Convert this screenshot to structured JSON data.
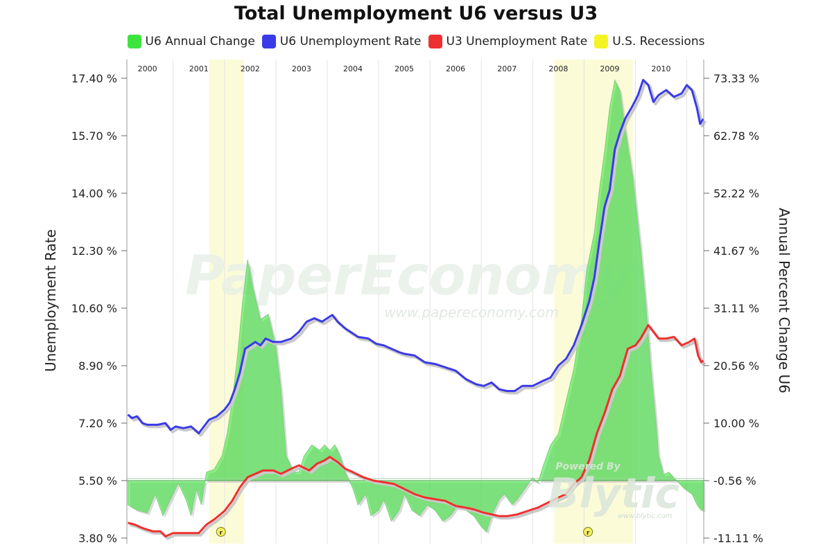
{
  "chart_data": {
    "type": "line",
    "title": "Total Unemployment U6 versus U3",
    "ylabel_left": "Unemployment Rate",
    "ylabel_right": "Annual Percent Change U6",
    "left_axis": {
      "min": 3.8,
      "max": 17.4,
      "ticks": [
        "17.40 %",
        "15.70 %",
        "14.00 %",
        "12.30 %",
        "10.60 %",
        "8.90 %",
        "7.20 %",
        "5.50 %",
        "3.80 %"
      ]
    },
    "right_axis": {
      "min": -11.11,
      "max": 73.33,
      "ticks": [
        "73.33 %",
        "62.78 %",
        "52.22 %",
        "41.67 %",
        "31.11 %",
        "20.56 %",
        "10.00 %",
        "-0.56 %",
        "-11.11 %"
      ]
    },
    "x_range": [
      1999.6,
      2010.83
    ],
    "year_labels": [
      "2000",
      "2001",
      "2002",
      "2003",
      "2004",
      "2005",
      "2006",
      "2007",
      "2008",
      "2009",
      "2010"
    ],
    "recessions": [
      {
        "start": 2001.2,
        "end": 2001.88,
        "marker": "r"
      },
      {
        "start": 2007.92,
        "end": 2009.45,
        "marker": "r"
      }
    ],
    "legend": [
      {
        "label": "U6 Annual Change",
        "color": "#3ee43e"
      },
      {
        "label": "U6 Unemployment Rate",
        "color": "#3a3ae8"
      },
      {
        "label": "U3 Unemployment Rate",
        "color": "#ee3030"
      },
      {
        "label": "U.S. Recessions",
        "color": "#f4f425"
      }
    ],
    "grid": "vertical-year-lines",
    "series": [
      {
        "name": "U6 Unemployment Rate",
        "axis": "left",
        "color": "#3a3ae8",
        "points": [
          [
            1999.62,
            7.45
          ],
          [
            1999.7,
            7.35
          ],
          [
            1999.8,
            7.4
          ],
          [
            1999.9,
            7.2
          ],
          [
            2000.0,
            7.15
          ],
          [
            2000.2,
            7.15
          ],
          [
            2000.35,
            7.2
          ],
          [
            2000.45,
            7.0
          ],
          [
            2000.55,
            7.1
          ],
          [
            2000.7,
            7.05
          ],
          [
            2000.85,
            7.1
          ],
          [
            2001.0,
            6.9
          ],
          [
            2001.1,
            7.1
          ],
          [
            2001.2,
            7.3
          ],
          [
            2001.35,
            7.4
          ],
          [
            2001.5,
            7.6
          ],
          [
            2001.6,
            7.8
          ],
          [
            2001.7,
            8.2
          ],
          [
            2001.8,
            8.7
          ],
          [
            2001.9,
            9.4
          ],
          [
            2002.0,
            9.5
          ],
          [
            2002.1,
            9.6
          ],
          [
            2002.2,
            9.5
          ],
          [
            2002.3,
            9.7
          ],
          [
            2002.45,
            9.6
          ],
          [
            2002.6,
            9.6
          ],
          [
            2002.8,
            9.7
          ],
          [
            2002.95,
            9.9
          ],
          [
            2003.1,
            10.2
          ],
          [
            2003.25,
            10.3
          ],
          [
            2003.4,
            10.2
          ],
          [
            2003.5,
            10.3
          ],
          [
            2003.6,
            10.4
          ],
          [
            2003.7,
            10.2
          ],
          [
            2003.85,
            10.0
          ],
          [
            2004.0,
            9.85
          ],
          [
            2004.1,
            9.75
          ],
          [
            2004.3,
            9.7
          ],
          [
            2004.45,
            9.55
          ],
          [
            2004.6,
            9.5
          ],
          [
            2004.75,
            9.4
          ],
          [
            2004.9,
            9.3
          ],
          [
            2005.0,
            9.25
          ],
          [
            2005.2,
            9.2
          ],
          [
            2005.4,
            9.0
          ],
          [
            2005.6,
            8.95
          ],
          [
            2005.8,
            8.85
          ],
          [
            2006.0,
            8.75
          ],
          [
            2006.2,
            8.5
          ],
          [
            2006.4,
            8.35
          ],
          [
            2006.55,
            8.3
          ],
          [
            2006.7,
            8.4
          ],
          [
            2006.85,
            8.2
          ],
          [
            2007.0,
            8.15
          ],
          [
            2007.15,
            8.15
          ],
          [
            2007.3,
            8.3
          ],
          [
            2007.5,
            8.3
          ],
          [
            2007.7,
            8.45
          ],
          [
            2007.85,
            8.55
          ],
          [
            2008.0,
            8.9
          ],
          [
            2008.15,
            9.1
          ],
          [
            2008.3,
            9.5
          ],
          [
            2008.45,
            10.1
          ],
          [
            2008.6,
            10.8
          ],
          [
            2008.7,
            11.5
          ],
          [
            2008.8,
            12.6
          ],
          [
            2008.9,
            13.6
          ],
          [
            2009.0,
            14.1
          ],
          [
            2009.1,
            15.3
          ],
          [
            2009.2,
            15.8
          ],
          [
            2009.3,
            16.2
          ],
          [
            2009.45,
            16.6
          ],
          [
            2009.55,
            16.9
          ],
          [
            2009.65,
            17.35
          ],
          [
            2009.75,
            17.2
          ],
          [
            2009.85,
            16.7
          ],
          [
            2009.95,
            16.9
          ],
          [
            2010.1,
            17.05
          ],
          [
            2010.25,
            16.85
          ],
          [
            2010.4,
            16.95
          ],
          [
            2010.5,
            17.2
          ],
          [
            2010.6,
            17.05
          ],
          [
            2010.7,
            16.5
          ],
          [
            2010.76,
            16.05
          ],
          [
            2010.82,
            16.2
          ]
        ]
      },
      {
        "name": "U3 Unemployment Rate",
        "axis": "left",
        "color": "#ee3030",
        "points": [
          [
            1999.62,
            4.25
          ],
          [
            1999.75,
            4.2
          ],
          [
            1999.9,
            4.1
          ],
          [
            2000.1,
            4.0
          ],
          [
            2000.25,
            4.0
          ],
          [
            2000.35,
            3.85
          ],
          [
            2000.5,
            3.95
          ],
          [
            2000.7,
            3.95
          ],
          [
            2000.85,
            3.95
          ],
          [
            2001.0,
            3.95
          ],
          [
            2001.15,
            4.2
          ],
          [
            2001.3,
            4.35
          ],
          [
            2001.5,
            4.6
          ],
          [
            2001.65,
            4.9
          ],
          [
            2001.8,
            5.3
          ],
          [
            2001.95,
            5.6
          ],
          [
            2002.1,
            5.7
          ],
          [
            2002.25,
            5.8
          ],
          [
            2002.45,
            5.8
          ],
          [
            2002.6,
            5.7
          ],
          [
            2002.8,
            5.85
          ],
          [
            2002.95,
            5.95
          ],
          [
            2003.15,
            5.8
          ],
          [
            2003.3,
            6.0
          ],
          [
            2003.45,
            6.1
          ],
          [
            2003.55,
            6.2
          ],
          [
            2003.7,
            6.05
          ],
          [
            2003.85,
            5.85
          ],
          [
            2004.0,
            5.75
          ],
          [
            2004.2,
            5.6
          ],
          [
            2004.4,
            5.5
          ],
          [
            2004.6,
            5.45
          ],
          [
            2004.8,
            5.4
          ],
          [
            2005.0,
            5.25
          ],
          [
            2005.2,
            5.1
          ],
          [
            2005.4,
            5.0
          ],
          [
            2005.6,
            4.95
          ],
          [
            2005.8,
            4.9
          ],
          [
            2006.0,
            4.75
          ],
          [
            2006.2,
            4.7
          ],
          [
            2006.35,
            4.65
          ],
          [
            2006.55,
            4.55
          ],
          [
            2006.7,
            4.5
          ],
          [
            2006.85,
            4.45
          ],
          [
            2007.0,
            4.45
          ],
          [
            2007.2,
            4.5
          ],
          [
            2007.4,
            4.6
          ],
          [
            2007.6,
            4.7
          ],
          [
            2007.8,
            4.85
          ],
          [
            2008.0,
            5.0
          ],
          [
            2008.15,
            5.1
          ],
          [
            2008.3,
            5.4
          ],
          [
            2008.45,
            5.6
          ],
          [
            2008.6,
            6.1
          ],
          [
            2008.75,
            6.9
          ],
          [
            2008.9,
            7.5
          ],
          [
            2009.05,
            8.2
          ],
          [
            2009.2,
            8.6
          ],
          [
            2009.35,
            9.4
          ],
          [
            2009.5,
            9.5
          ],
          [
            2009.6,
            9.7
          ],
          [
            2009.75,
            10.1
          ],
          [
            2009.85,
            9.9
          ],
          [
            2009.95,
            9.7
          ],
          [
            2010.1,
            9.7
          ],
          [
            2010.25,
            9.75
          ],
          [
            2010.4,
            9.5
          ],
          [
            2010.55,
            9.6
          ],
          [
            2010.65,
            9.7
          ],
          [
            2010.72,
            9.2
          ],
          [
            2010.78,
            9.0
          ],
          [
            2010.82,
            9.05
          ]
        ]
      },
      {
        "name": "U6 Annual Change",
        "axis": "right",
        "color": "#3ee43e",
        "type": "area",
        "baseline": -0.56,
        "points": [
          [
            1999.62,
            -5
          ],
          [
            1999.8,
            -6
          ],
          [
            2000.0,
            -6.5
          ],
          [
            2000.15,
            -3
          ],
          [
            2000.3,
            -7
          ],
          [
            2000.45,
            -4
          ],
          [
            2000.6,
            -1
          ],
          [
            2000.75,
            -4
          ],
          [
            2000.85,
            -7
          ],
          [
            2000.95,
            -2
          ],
          [
            2001.05,
            -5
          ],
          [
            2001.15,
            1
          ],
          [
            2001.3,
            1.5
          ],
          [
            2001.45,
            4
          ],
          [
            2001.55,
            8
          ],
          [
            2001.65,
            14
          ],
          [
            2001.75,
            22
          ],
          [
            2001.85,
            32
          ],
          [
            2001.95,
            40
          ],
          [
            2002.05,
            35
          ],
          [
            2002.2,
            29
          ],
          [
            2002.35,
            30
          ],
          [
            2002.5,
            24
          ],
          [
            2002.6,
            16
          ],
          [
            2002.7,
            4
          ],
          [
            2002.85,
            1
          ],
          [
            2002.95,
            1
          ],
          [
            2003.05,
            4
          ],
          [
            2003.2,
            6
          ],
          [
            2003.35,
            5
          ],
          [
            2003.45,
            6
          ],
          [
            2003.55,
            5
          ],
          [
            2003.65,
            6
          ],
          [
            2003.75,
            4
          ],
          [
            2003.85,
            1
          ],
          [
            2004.0,
            -2
          ],
          [
            2004.1,
            -5
          ],
          [
            2004.25,
            -3
          ],
          [
            2004.35,
            -7
          ],
          [
            2004.5,
            -6
          ],
          [
            2004.6,
            -4
          ],
          [
            2004.75,
            -8
          ],
          [
            2004.9,
            -6
          ],
          [
            2005.0,
            -3
          ],
          [
            2005.15,
            -6
          ],
          [
            2005.3,
            -7
          ],
          [
            2005.45,
            -5
          ],
          [
            2005.6,
            -6
          ],
          [
            2005.75,
            -8
          ],
          [
            2005.9,
            -7
          ],
          [
            2006.05,
            -5
          ],
          [
            2006.2,
            -6
          ],
          [
            2006.35,
            -7
          ],
          [
            2006.5,
            -9
          ],
          [
            2006.6,
            -10
          ],
          [
            2006.7,
            -7
          ],
          [
            2006.85,
            -4
          ],
          [
            2006.95,
            -3
          ],
          [
            2007.1,
            -5
          ],
          [
            2007.2,
            -4
          ],
          [
            2007.35,
            -2
          ],
          [
            2007.5,
            0
          ],
          [
            2007.6,
            -1
          ],
          [
            2007.7,
            2
          ],
          [
            2007.85,
            6
          ],
          [
            2008.0,
            8
          ],
          [
            2008.15,
            14
          ],
          [
            2008.3,
            20
          ],
          [
            2008.45,
            29
          ],
          [
            2008.55,
            38
          ],
          [
            2008.7,
            45
          ],
          [
            2008.8,
            53
          ],
          [
            2008.9,
            60
          ],
          [
            2009.0,
            68
          ],
          [
            2009.1,
            73
          ],
          [
            2009.2,
            71
          ],
          [
            2009.3,
            64
          ],
          [
            2009.45,
            55
          ],
          [
            2009.6,
            42
          ],
          [
            2009.7,
            32
          ],
          [
            2009.8,
            20
          ],
          [
            2009.9,
            10
          ],
          [
            2009.95,
            4
          ],
          [
            2010.05,
            0.5
          ],
          [
            2010.15,
            1
          ],
          [
            2010.3,
            -0.5
          ],
          [
            2010.45,
            -2
          ],
          [
            2010.6,
            -3
          ],
          [
            2010.7,
            -5
          ],
          [
            2010.78,
            -6
          ],
          [
            2010.82,
            -6
          ]
        ]
      }
    ]
  },
  "watermark": {
    "main": "PaperEconomy",
    "sub": "www.papereconomy.com"
  },
  "powered_by": {
    "label": "Powered By",
    "brand": "Blytic",
    "url": "www.blytic.com"
  }
}
